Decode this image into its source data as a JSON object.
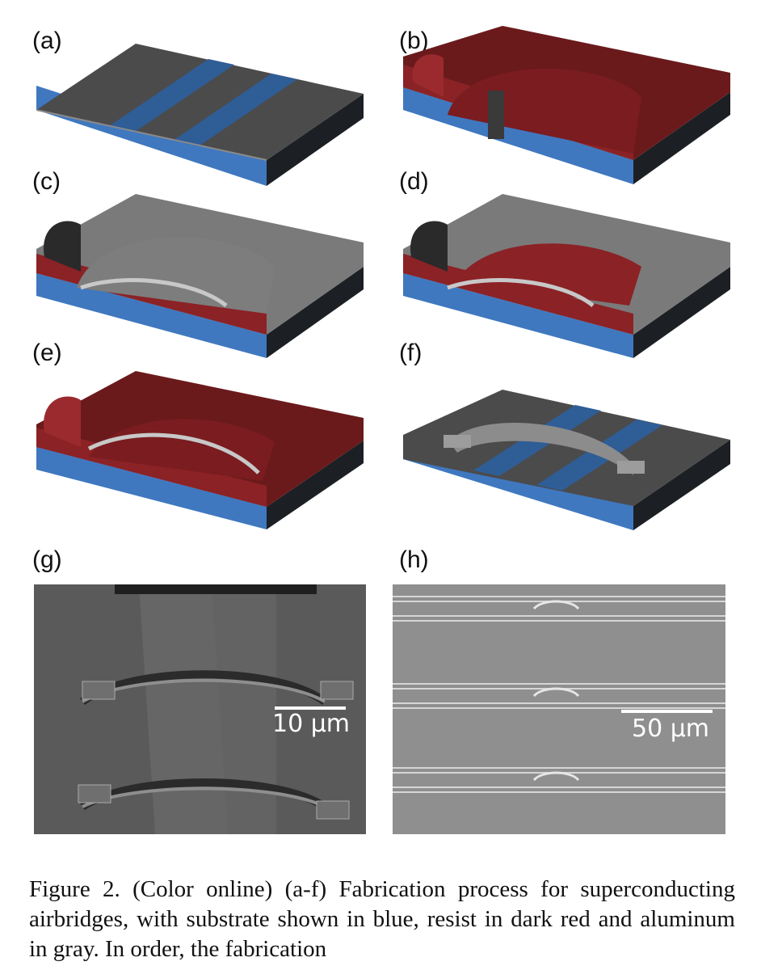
{
  "figure": {
    "panel_labels": {
      "a": "(a)",
      "b": "(b)",
      "c": "(c)",
      "d": "(d)",
      "e": "(e)",
      "f": "(f)",
      "g": "(g)",
      "h": "(h)"
    },
    "scale_bars": {
      "g": "10 µm",
      "h": "50 µm"
    },
    "caption": "Figure 2. (Color online) (a-f) Fabrication process for superconducting airbridges, with substrate shown in blue, resist in dark red and aluminum in gray. In order, the fabrication",
    "colors": {
      "substrate": "#3f78bf",
      "resist": "#8b2226",
      "aluminum": "#9a9a9a",
      "metal_film": "#4a4a4a"
    }
  }
}
